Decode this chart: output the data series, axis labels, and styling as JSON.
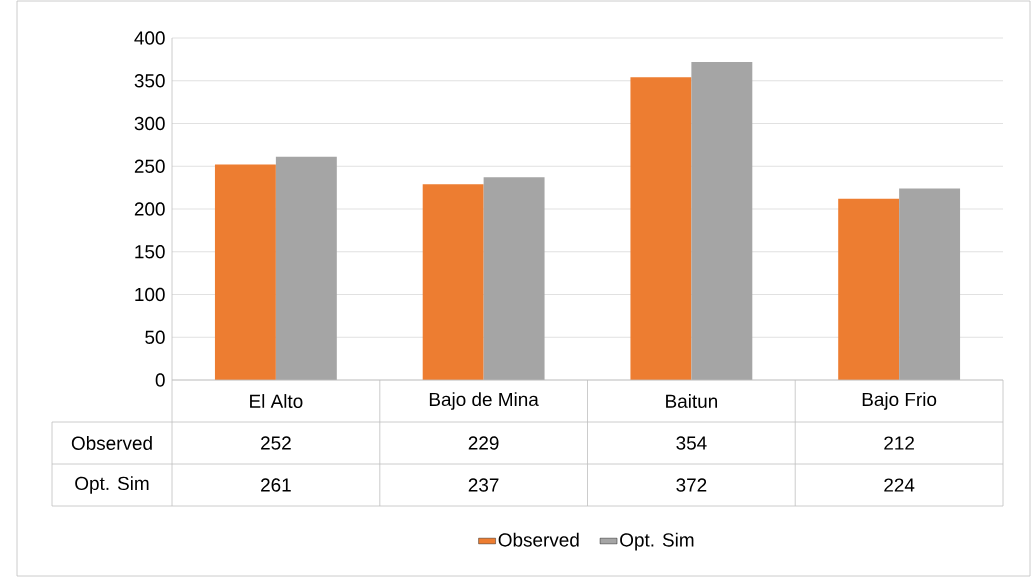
{
  "chart_data": {
    "type": "bar",
    "categories": [
      "El Alto",
      "Bajo de Mina",
      "Baitun",
      "Bajo Frio"
    ],
    "series": [
      {
        "name": "Observed",
        "color": "#ed7d31",
        "values": [
          252,
          229,
          354,
          212
        ]
      },
      {
        "name": "Opt. Sim",
        "color": "#a5a5a5",
        "values": [
          261,
          237,
          372,
          224
        ]
      }
    ],
    "ylim": [
      0,
      400
    ],
    "yticks": [
      0,
      50,
      100,
      150,
      200,
      250,
      300,
      350,
      400
    ],
    "grid": "y",
    "legend": "bottom",
    "data_labels": true
  }
}
